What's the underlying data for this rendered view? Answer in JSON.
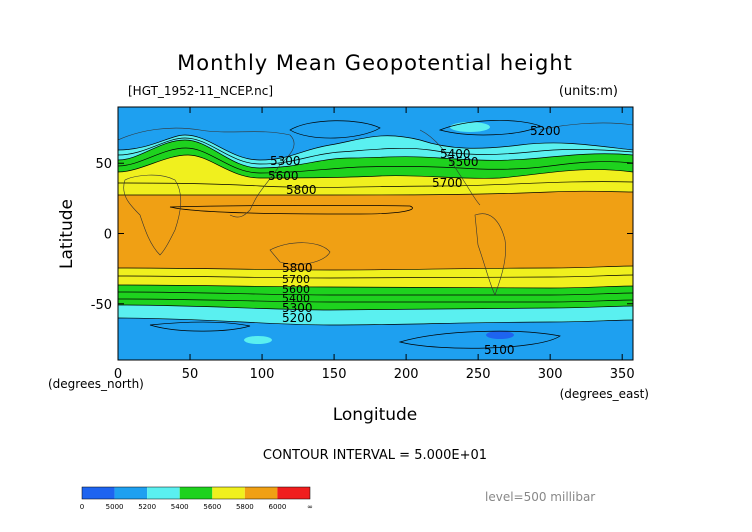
{
  "chart_data": {
    "type": "contour",
    "title": "Monthly Mean Geopotential height",
    "file_label": "[HGT_1952-11_NCEP.nc]",
    "units_label": "(units:m)",
    "xlabel": "Longitude",
    "ylabel": "Latitude",
    "x_unit_label": "(degrees_east)",
    "y_unit_label": "(degrees_north)",
    "xlim": [
      0,
      357.5
    ],
    "ylim": [
      -90,
      90
    ],
    "x_ticks": [
      0,
      50,
      100,
      150,
      200,
      250,
      300,
      350
    ],
    "y_ticks": [
      -50,
      0,
      50
    ],
    "contour_interval_text": "CONTOUR INTERVAL = 5.000E+01",
    "level_text": "level=500 millibar",
    "contour_labels": [
      "5200",
      "5300",
      "5400",
      "5500",
      "5600",
      "5700",
      "5800",
      "5100"
    ],
    "colorbar": {
      "tick_labels": [
        "0",
        "5000",
        "5200",
        "5400",
        "5600",
        "5800",
        "6000",
        "∞"
      ],
      "bands": [
        {
          "from": 0,
          "to": 5000,
          "color": "#1e64f0"
        },
        {
          "from": 5000,
          "to": 5200,
          "color": "#1ea0f0"
        },
        {
          "from": 5200,
          "to": 5400,
          "color": "#5af0f0"
        },
        {
          "from": 5400,
          "to": 5600,
          "color": "#1ed21e"
        },
        {
          "from": 5600,
          "to": 5800,
          "color": "#f0f01e"
        },
        {
          "from": 5800,
          "to": 6000,
          "color": "#f0a014"
        },
        {
          "from": 6000,
          "to": "∞",
          "color": "#f01e1e"
        }
      ]
    }
  }
}
